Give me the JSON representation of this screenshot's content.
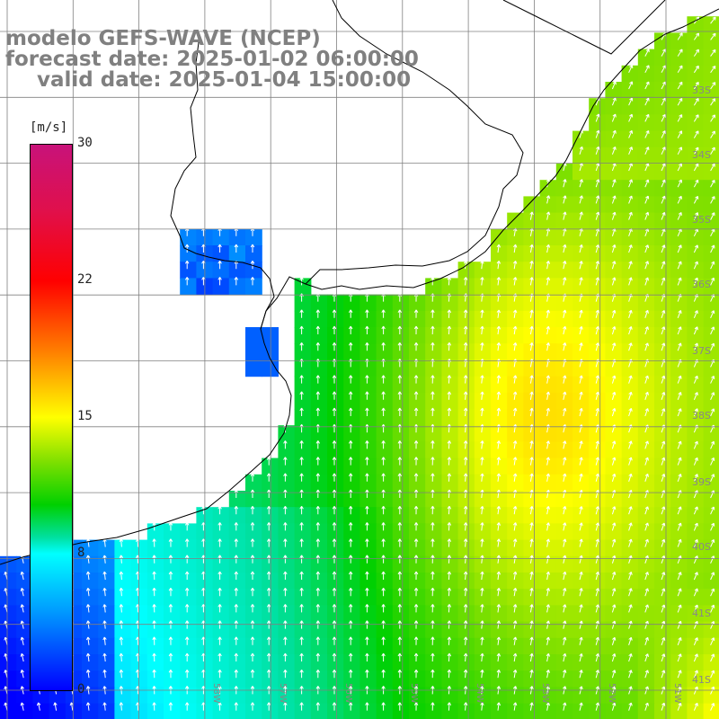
{
  "title": {
    "line1": "modelo GEFS-WAVE (NCEP)",
    "line2": "forecast date: 2025-01-02 06:00:00",
    "line3": "valid date: 2025-01-04 15:00:00"
  },
  "colorbar": {
    "unit": "[m/s]",
    "ticks": [
      "30",
      "22",
      "15",
      "8",
      "0"
    ],
    "stops": [
      "#0000ff",
      "#00a0ff",
      "#00ffff",
      "#00e0a0",
      "#00d000",
      "#80e000",
      "#ffff00",
      "#ff8000",
      "#ff0000",
      "#e0104c",
      "#c8127a"
    ]
  },
  "lat_labels": [
    "33S",
    "34S",
    "35S",
    "36S",
    "37S",
    "38S",
    "39S",
    "40S",
    "41S"
  ],
  "lon_labels": [
    "58W",
    "57W",
    "56W",
    "55W",
    "54W",
    "53W",
    "52W",
    "51W"
  ],
  "colors": {
    "coast": "#000000",
    "grid": "#808080",
    "arrow": "#ffffff",
    "land": "#ffffff"
  }
}
